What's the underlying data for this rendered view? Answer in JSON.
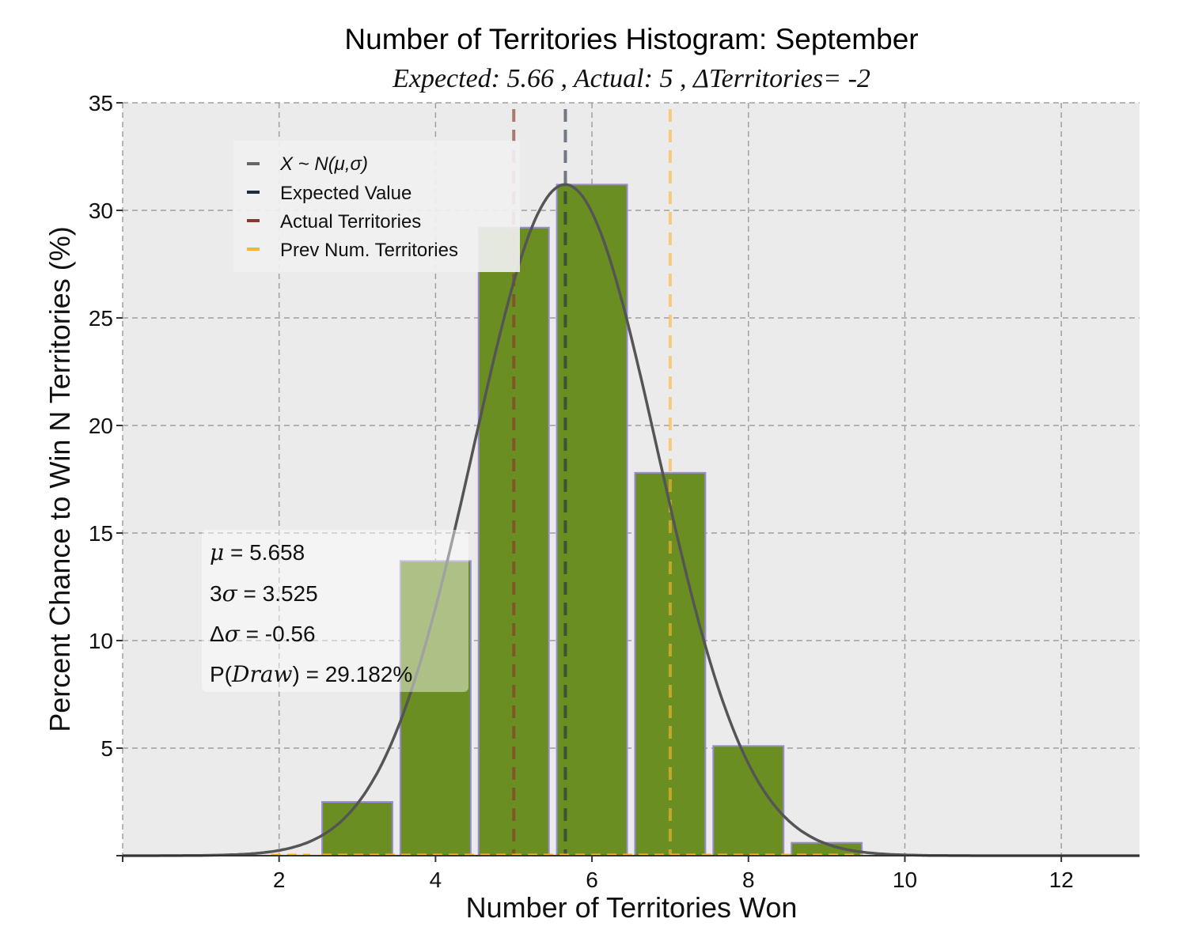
{
  "colors": {
    "plot_bg": "#ebebeb",
    "bar_fill": "#6b8e23",
    "bar_edge": "#9b8bd4",
    "normal_curve": "#555555",
    "expected": "#1f2a44",
    "actual": "#8b3a2a",
    "previous": "#ffb52e",
    "grid": "#a0a0a0"
  },
  "chart_data": {
    "type": "bar",
    "title": "Number of Territories Histogram: September",
    "subtitle": "Expected: 5.66 , Actual: 5 , ΔTerritories= -2",
    "xlabel": "Number of Territories Won",
    "ylabel": "Percent Chance to Win N Territories (%)",
    "xlim": [
      0,
      13
    ],
    "ylim": [
      0,
      35
    ],
    "xticks": [
      2,
      4,
      6,
      8,
      10,
      12
    ],
    "yticks": [
      5,
      10,
      15,
      20,
      25,
      30,
      35
    ],
    "grid": true,
    "categories": [
      3,
      4,
      5,
      6,
      7,
      8,
      9
    ],
    "values": [
      2.5,
      13.7,
      29.2,
      31.2,
      17.8,
      5.1,
      0.6
    ],
    "bar_width": 0.9,
    "normal": {
      "mu": 5.658,
      "sigma": 1.175
    },
    "expected_value": 5.66,
    "actual_territories": 5,
    "previous_territories": 7,
    "legend": {
      "position": "upper-left",
      "entries": [
        {
          "label": "X ~ N(μ,σ)",
          "color": "#666666",
          "italic": true
        },
        {
          "label": "Expected Value",
          "color": "#1f2a44"
        },
        {
          "label": "Actual Territories",
          "color": "#8b3a2a"
        },
        {
          "label": "Prev Num. Territories",
          "color": "#ffb52e"
        }
      ]
    },
    "stats": {
      "mu_label": "μ",
      "mu_value": " = 5.658",
      "three_sigma_prefix": "3",
      "three_sigma_symbol": "σ",
      "three_sigma_value": " = 3.525",
      "delta_prefix": "Δ",
      "delta_symbol": "σ",
      "delta_value": " = -0.56",
      "p_prefix": "P(",
      "p_word": "Draw",
      "p_value": ") = 29.182%"
    }
  }
}
